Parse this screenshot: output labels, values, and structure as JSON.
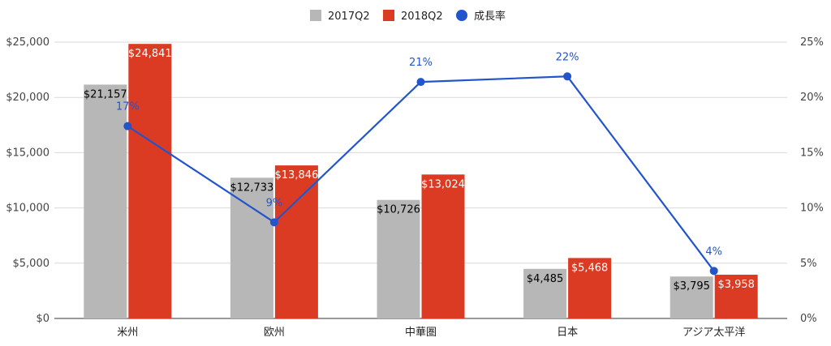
{
  "chart_data": {
    "type": "bar",
    "categories": [
      "米州",
      "欧州",
      "中華圏",
      "日本",
      "アジア太平洋"
    ],
    "series": [
      {
        "name": "2017Q2",
        "kind": "bar",
        "axis": "left",
        "color": "#b7b7b7",
        "values": [
          21157,
          12733,
          10726,
          4485,
          3795
        ],
        "labels": [
          "$21,157",
          "$12,733",
          "$10,726",
          "$4,485",
          "$3,795"
        ]
      },
      {
        "name": "2018Q2",
        "kind": "bar",
        "axis": "left",
        "color": "#dc3b23",
        "values": [
          24841,
          13846,
          13024,
          5468,
          3958
        ],
        "labels": [
          "$24,841",
          "$13,846",
          "$13,024",
          "$5,468",
          "$3,958"
        ]
      },
      {
        "name": "成長率",
        "kind": "line",
        "axis": "right",
        "color": "#2255cc",
        "values": [
          17.4,
          8.7,
          21.4,
          21.9,
          4.3
        ],
        "labels": [
          "17%",
          "9%",
          "21%",
          "22%",
          "4%"
        ]
      }
    ],
    "y_left": {
      "min": 0,
      "max": 25000,
      "ticks": [
        0,
        5000,
        10000,
        15000,
        20000,
        25000
      ],
      "tick_labels": [
        "$0",
        "$5,000",
        "$10,000",
        "$15,000",
        "$20,000",
        "$25,000"
      ]
    },
    "y_right": {
      "min": 0,
      "max": 25,
      "ticks": [
        0,
        5,
        10,
        15,
        20,
        25
      ],
      "tick_labels": [
        "0%",
        "5%",
        "10%",
        "15%",
        "20%",
        "25%"
      ]
    },
    "legend_position": "top",
    "grid": true
  }
}
